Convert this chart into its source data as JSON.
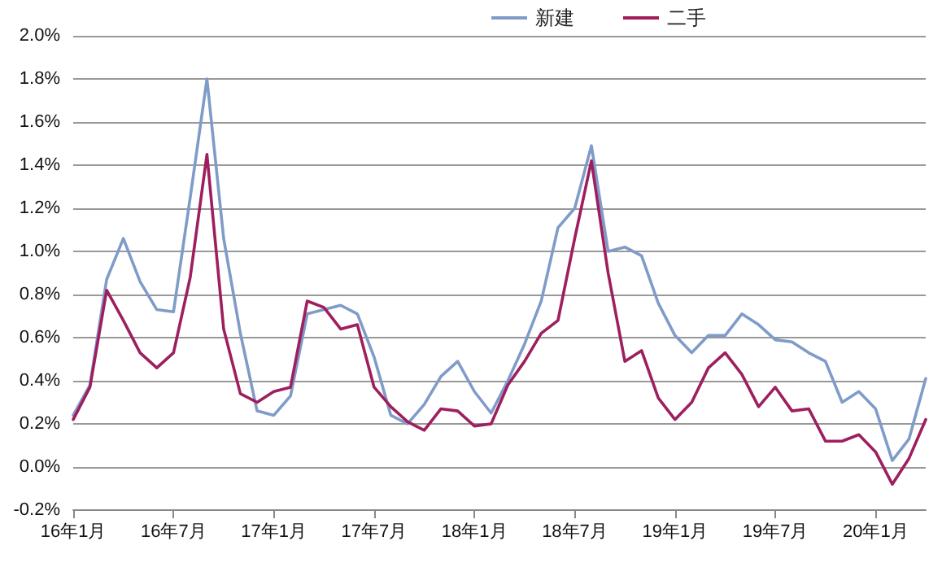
{
  "chart_data": {
    "type": "line",
    "categories": [
      "16年1月",
      null,
      null,
      null,
      null,
      null,
      "16年7月",
      null,
      null,
      null,
      null,
      null,
      "17年1月",
      null,
      null,
      null,
      null,
      null,
      "17年7月",
      null,
      null,
      null,
      null,
      null,
      "18年1月",
      null,
      null,
      null,
      null,
      null,
      "18年7月",
      null,
      null,
      null,
      null,
      null,
      "19年1月",
      null,
      null,
      null,
      null,
      null,
      "19年7月",
      null,
      null,
      null,
      null,
      null,
      "20年1月",
      null,
      null,
      null
    ],
    "series": [
      {
        "name": "新建",
        "color": "#7f9cc8",
        "values": [
          0.24,
          0.38,
          0.87,
          1.06,
          0.86,
          0.73,
          0.72,
          1.25,
          1.8,
          1.06,
          0.62,
          0.26,
          0.24,
          0.33,
          0.71,
          0.73,
          0.75,
          0.71,
          0.51,
          0.24,
          0.2,
          0.29,
          0.42,
          0.49,
          0.35,
          0.25,
          0.4,
          0.57,
          0.77,
          1.11,
          1.2,
          1.49,
          1.0,
          1.02,
          0.98,
          0.76,
          0.61,
          0.53,
          0.61,
          0.61,
          0.71,
          0.66,
          0.59,
          0.58,
          0.53,
          0.49,
          0.3,
          0.35,
          0.27,
          0.03,
          0.13,
          0.41
        ]
      },
      {
        "name": "二手",
        "color": "#9e1f5e",
        "values": [
          0.22,
          0.37,
          0.82,
          0.68,
          0.53,
          0.46,
          0.53,
          0.88,
          1.45,
          0.64,
          0.34,
          0.3,
          0.35,
          0.37,
          0.77,
          0.74,
          0.64,
          0.66,
          0.37,
          0.28,
          0.21,
          0.17,
          0.27,
          0.26,
          0.19,
          0.2,
          0.38,
          0.49,
          0.62,
          0.68,
          1.06,
          1.42,
          0.9,
          0.49,
          0.54,
          0.32,
          0.22,
          0.3,
          0.46,
          0.53,
          0.43,
          0.28,
          0.37,
          0.26,
          0.27,
          0.12,
          0.12,
          0.15,
          0.07,
          -0.08,
          0.04,
          0.22
        ]
      }
    ],
    "ylim": [
      -0.2,
      2.0
    ],
    "yticks": [
      {
        "value": -0.2,
        "label": "-0.2%"
      },
      {
        "value": 0,
        "label": "0.0%"
      },
      {
        "value": 0.2,
        "label": "0.2%"
      },
      {
        "value": 0.4,
        "label": "0.4%"
      },
      {
        "value": 0.6,
        "label": "0.6%"
      },
      {
        "value": 0.8,
        "label": "0.8%"
      },
      {
        "value": 1.0,
        "label": "1.0%"
      },
      {
        "value": 1.2,
        "label": "1.2%"
      },
      {
        "value": 1.4,
        "label": "1.4%"
      },
      {
        "value": 1.6,
        "label": "1.6%"
      },
      {
        "value": 1.8,
        "label": "1.8%"
      },
      {
        "value": 2.0,
        "label": "2.0%"
      }
    ],
    "grid": "y",
    "legend": "top right",
    "marker": "none",
    "line_style": "solid"
  }
}
